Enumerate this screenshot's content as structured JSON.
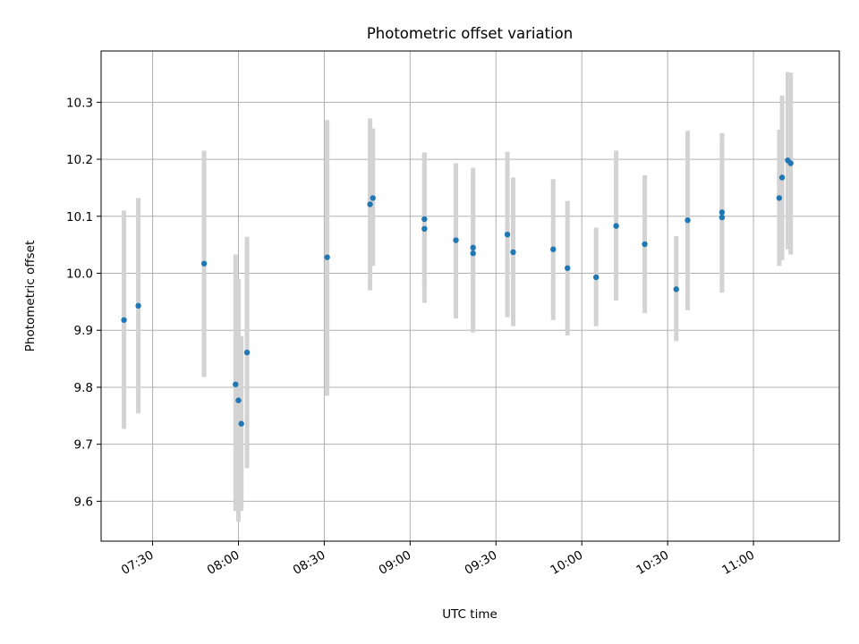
{
  "chart_data": {
    "type": "scatter",
    "title": "Photometric offset variation",
    "xlabel": "UTC time",
    "ylabel": "Photometric offset",
    "x_axis": "time",
    "xlim": [
      "07:12",
      "11:30"
    ],
    "ylim": [
      9.53,
      10.39
    ],
    "xticks": [
      "07:30",
      "08:00",
      "08:30",
      "09:00",
      "09:30",
      "10:00",
      "10:30",
      "11:00"
    ],
    "yticks": [
      9.6,
      9.7,
      9.8,
      9.9,
      10.0,
      10.1,
      10.2,
      10.3
    ],
    "grid": true,
    "colors": {
      "point": "#1f77b4",
      "errorbar": "#d3d3d3",
      "grid": "#b0b0b0"
    },
    "points": [
      {
        "t": "07:20",
        "y": 9.918,
        "lo": 9.727,
        "hi": 10.11
      },
      {
        "t": "07:25",
        "y": 9.943,
        "lo": 9.754,
        "hi": 10.132
      },
      {
        "t": "07:48",
        "y": 10.017,
        "lo": 9.818,
        "hi": 10.215
      },
      {
        "t": "07:59",
        "y": 9.805,
        "lo": 9.583,
        "hi": 10.033
      },
      {
        "t": "08:00",
        "y": 9.777,
        "lo": 9.564,
        "hi": 9.99
      },
      {
        "t": "08:01",
        "y": 9.736,
        "lo": 9.583,
        "hi": 9.89
      },
      {
        "t": "08:03",
        "y": 9.861,
        "lo": 9.658,
        "hi": 10.064
      },
      {
        "t": "08:31",
        "y": 10.028,
        "lo": 9.785,
        "hi": 10.269
      },
      {
        "t": "08:46",
        "y": 10.121,
        "lo": 9.97,
        "hi": 10.272
      },
      {
        "t": "08:47",
        "y": 10.132,
        "lo": 10.013,
        "hi": 10.254
      },
      {
        "t": "09:05",
        "y": 10.095,
        "lo": 9.98,
        "hi": 10.212
      },
      {
        "t": "09:05",
        "y": 10.078,
        "lo": 9.948,
        "hi": 10.209
      },
      {
        "t": "09:16",
        "y": 10.058,
        "lo": 9.921,
        "hi": 10.193
      },
      {
        "t": "09:22",
        "y": 10.045,
        "lo": 9.905,
        "hi": 10.185
      },
      {
        "t": "09:22",
        "y": 10.035,
        "lo": 9.896,
        "hi": 10.175
      },
      {
        "t": "09:34",
        "y": 10.068,
        "lo": 9.923,
        "hi": 10.213
      },
      {
        "t": "09:36",
        "y": 10.037,
        "lo": 9.907,
        "hi": 10.168
      },
      {
        "t": "09:50",
        "y": 10.042,
        "lo": 9.918,
        "hi": 10.165
      },
      {
        "t": "09:55",
        "y": 10.009,
        "lo": 9.891,
        "hi": 10.127
      },
      {
        "t": "10:05",
        "y": 9.993,
        "lo": 9.907,
        "hi": 10.08
      },
      {
        "t": "10:12",
        "y": 10.083,
        "lo": 9.952,
        "hi": 10.215
      },
      {
        "t": "10:22",
        "y": 10.051,
        "lo": 9.93,
        "hi": 10.172
      },
      {
        "t": "10:33",
        "y": 9.972,
        "lo": 9.881,
        "hi": 10.065
      },
      {
        "t": "10:37",
        "y": 10.093,
        "lo": 9.935,
        "hi": 10.25
      },
      {
        "t": "10:49",
        "y": 10.098,
        "lo": 9.966,
        "hi": 10.23
      },
      {
        "t": "10:49",
        "y": 10.107,
        "lo": 9.967,
        "hi": 10.246
      },
      {
        "t": "11:09",
        "y": 10.132,
        "lo": 10.013,
        "hi": 10.252
      },
      {
        "t": "11:10",
        "y": 10.168,
        "lo": 10.023,
        "hi": 10.312
      },
      {
        "t": "11:12",
        "y": 10.198,
        "lo": 10.042,
        "hi": 10.353
      },
      {
        "t": "11:13",
        "y": 10.193,
        "lo": 10.033,
        "hi": 10.352
      }
    ]
  }
}
